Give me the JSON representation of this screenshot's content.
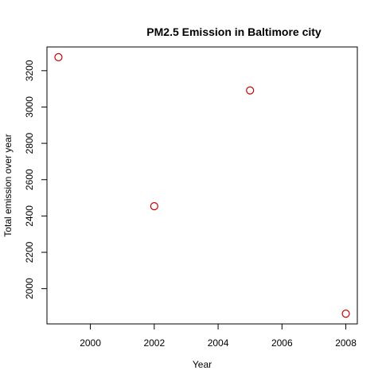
{
  "chart_data": {
    "type": "scatter",
    "title": "PM2.5 Emission in Baltimore city",
    "xlabel": "Year",
    "ylabel": "Total emission over year",
    "x": [
      1999,
      2002,
      2005,
      2008
    ],
    "y": [
      3274.18,
      2453.916,
      3091.354,
      1862.282
    ],
    "xlim": [
      1999,
      2008
    ],
    "ylim": [
      1862.282,
      3274.18
    ],
    "x_ticks": [
      "2000",
      "2002",
      "2004",
      "2006",
      "2008"
    ],
    "y_ticks": [
      "2000",
      "2200",
      "2400",
      "2600",
      "2800",
      "3000",
      "3200"
    ],
    "point_color": "#cc0000",
    "grid": false,
    "legend": "none"
  }
}
